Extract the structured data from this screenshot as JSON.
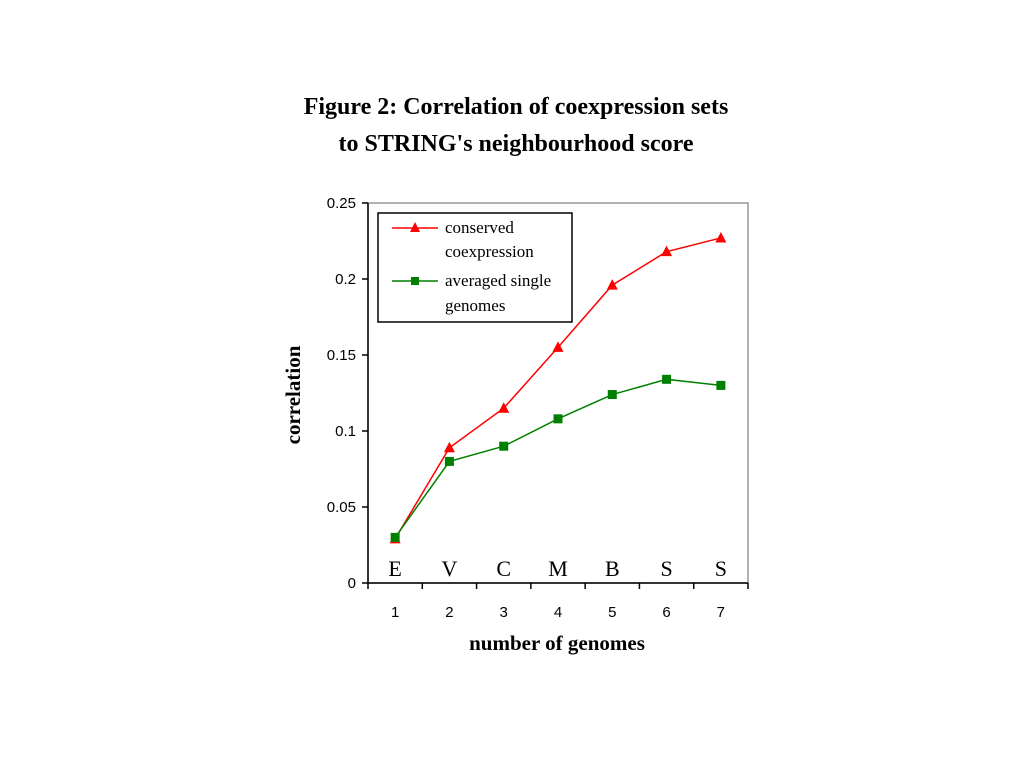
{
  "title_lines": [
    "Figure 2: Correlation of coexpression sets",
    "to STRING's neighbourhood score"
  ],
  "chart_data": {
    "type": "line",
    "xlabel": "number of genomes",
    "ylabel": "correlation",
    "x": [
      1,
      2,
      3,
      4,
      5,
      6,
      7
    ],
    "x_ticks": [
      "1",
      "2",
      "3",
      "4",
      "5",
      "6",
      "7"
    ],
    "category_letters": [
      "E",
      "V",
      "C",
      "M",
      "B",
      "S",
      "S"
    ],
    "ylim": [
      0,
      0.25
    ],
    "y_ticks": [
      0,
      0.05,
      0.1,
      0.15,
      0.2,
      0.25
    ],
    "y_tick_labels": [
      "0",
      "0.05",
      "0.1",
      "0.15",
      "0.2",
      "0.25"
    ],
    "grid": false,
    "legend_position": "top-left",
    "series": [
      {
        "name": "conserved coexpression",
        "legend_lines": [
          "conserved",
          "coexpression"
        ],
        "values": [
          0.029,
          0.089,
          0.115,
          0.155,
          0.196,
          0.218,
          0.227
        ],
        "color": "#ff0000",
        "marker": "triangle"
      },
      {
        "name": "averaged single genomes",
        "legend_lines": [
          "averaged single",
          "genomes"
        ],
        "values": [
          0.03,
          0.08,
          0.09,
          0.108,
          0.124,
          0.134,
          0.13
        ],
        "color": "#008000",
        "marker": "square"
      }
    ]
  }
}
